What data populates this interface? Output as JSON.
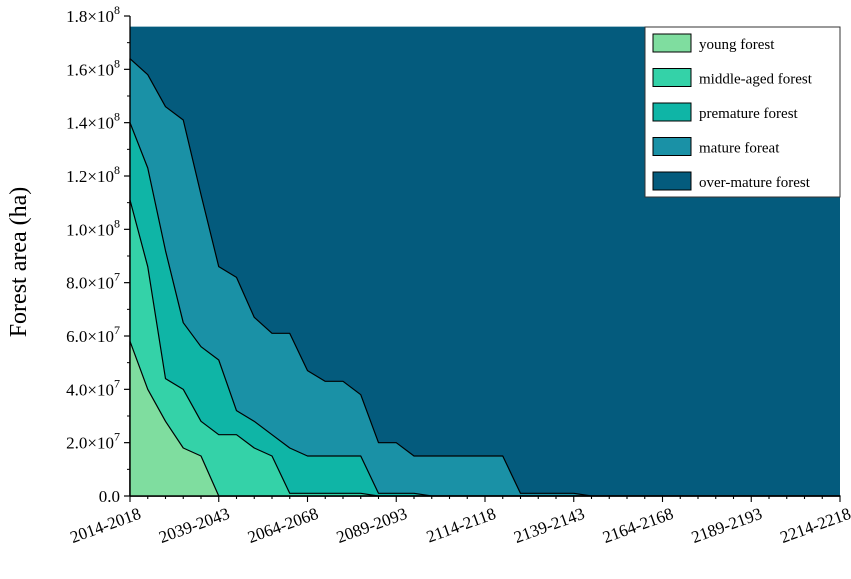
{
  "chart_data": {
    "type": "area",
    "stacked": true,
    "ylabel": "Forest area (ha)",
    "xlabel": "",
    "x_tick_labels": [
      "2014-2018",
      "2039-2043",
      "2064-2068",
      "2089-2093",
      "2114-2118",
      "2139-2143",
      "2164-2168",
      "2189-2193",
      "2214-2218"
    ],
    "y_ticks": [
      {
        "value": 0,
        "label": "0.0"
      },
      {
        "value": 20000000,
        "base": "2.0×10",
        "exp": "7"
      },
      {
        "value": 40000000,
        "base": "4.0×10",
        "exp": "7"
      },
      {
        "value": 60000000,
        "base": "6.0×10",
        "exp": "7"
      },
      {
        "value": 80000000,
        "base": "8.0×10",
        "exp": "7"
      },
      {
        "value": 100000000,
        "base": "1.0×10",
        "exp": "8"
      },
      {
        "value": 120000000,
        "base": "1.2×10",
        "exp": "8"
      },
      {
        "value": 140000000,
        "base": "1.4×10",
        "exp": "8"
      },
      {
        "value": 160000000,
        "base": "1.6×10",
        "exp": "8"
      },
      {
        "value": 180000000,
        "base": "1.8×10",
        "exp": "8"
      }
    ],
    "ylim": [
      0,
      180000000
    ],
    "x_periods": [
      "2014-2018",
      "2019-2023",
      "2024-2028",
      "2029-2033",
      "2034-2038",
      "2039-2043",
      "2044-2048",
      "2049-2053",
      "2054-2058",
      "2059-2063",
      "2064-2068",
      "2069-2073",
      "2074-2078",
      "2079-2083",
      "2084-2088",
      "2089-2093",
      "2094-2098",
      "2099-2103",
      "2104-2108",
      "2109-2113",
      "2114-2118",
      "2119-2123",
      "2124-2128",
      "2129-2133",
      "2134-2138",
      "2139-2143",
      "2144-2148",
      "2149-2153",
      "2154-2158",
      "2159-2163",
      "2164-2168",
      "2169-2173",
      "2174-2178",
      "2179-2183",
      "2184-2188",
      "2189-2193",
      "2194-2198",
      "2199-2203",
      "2204-2208",
      "2209-2213",
      "2214-2218"
    ],
    "total_area": 176000000,
    "grid": false,
    "legend_position": "top-right",
    "series": [
      {
        "name": "young forest",
        "color": "#7fdd9f",
        "cumulative": [
          58000000,
          40000000,
          28000000,
          18000000,
          15000000,
          0,
          0,
          0,
          0,
          0,
          0,
          0,
          0,
          0,
          0,
          0,
          0,
          0,
          0,
          0,
          0,
          0,
          0,
          0,
          0,
          0,
          0,
          0,
          0,
          0,
          0,
          0,
          0,
          0,
          0,
          0,
          0,
          0,
          0,
          0,
          0
        ]
      },
      {
        "name": "middle-aged forest",
        "color": "#34d2a8",
        "cumulative": [
          111000000,
          86000000,
          44000000,
          40000000,
          28000000,
          23000000,
          23000000,
          18000000,
          15000000,
          1000000,
          1000000,
          1000000,
          1000000,
          1000000,
          0,
          0,
          0,
          0,
          0,
          0,
          0,
          0,
          0,
          0,
          0,
          0,
          0,
          0,
          0,
          0,
          0,
          0,
          0,
          0,
          0,
          0,
          0,
          0,
          0,
          0,
          0
        ]
      },
      {
        "name": "premature forest",
        "color": "#0fb5a6",
        "cumulative": [
          140000000,
          123000000,
          92000000,
          65000000,
          56000000,
          51000000,
          32000000,
          28000000,
          23000000,
          18000000,
          15000000,
          15000000,
          15000000,
          15000000,
          1000000,
          1000000,
          1000000,
          0,
          0,
          0,
          0,
          0,
          0,
          0,
          0,
          0,
          0,
          0,
          0,
          0,
          0,
          0,
          0,
          0,
          0,
          0,
          0,
          0,
          0,
          0,
          0
        ]
      },
      {
        "name": "mature foreat",
        "color": "#1a91a6",
        "cumulative": [
          164000000,
          158000000,
          146000000,
          141000000,
          113000000,
          86000000,
          82000000,
          67000000,
          61000000,
          61000000,
          47000000,
          43000000,
          43000000,
          38000000,
          20000000,
          20000000,
          15000000,
          15000000,
          15000000,
          15000000,
          15000000,
          15000000,
          1000000,
          1000000,
          1000000,
          1000000,
          0,
          0,
          0,
          0,
          0,
          0,
          0,
          0,
          0,
          0,
          0,
          0,
          0,
          0,
          0
        ]
      },
      {
        "name": "over-mature forest",
        "color": "#045b7d",
        "cumulative": [
          176000000,
          176000000,
          176000000,
          176000000,
          176000000,
          176000000,
          176000000,
          176000000,
          176000000,
          176000000,
          176000000,
          176000000,
          176000000,
          176000000,
          176000000,
          176000000,
          176000000,
          176000000,
          176000000,
          176000000,
          176000000,
          176000000,
          176000000,
          176000000,
          176000000,
          176000000,
          176000000,
          176000000,
          176000000,
          176000000,
          176000000,
          176000000,
          176000000,
          176000000,
          176000000,
          176000000,
          176000000,
          176000000,
          176000000,
          176000000,
          176000000
        ]
      }
    ]
  }
}
